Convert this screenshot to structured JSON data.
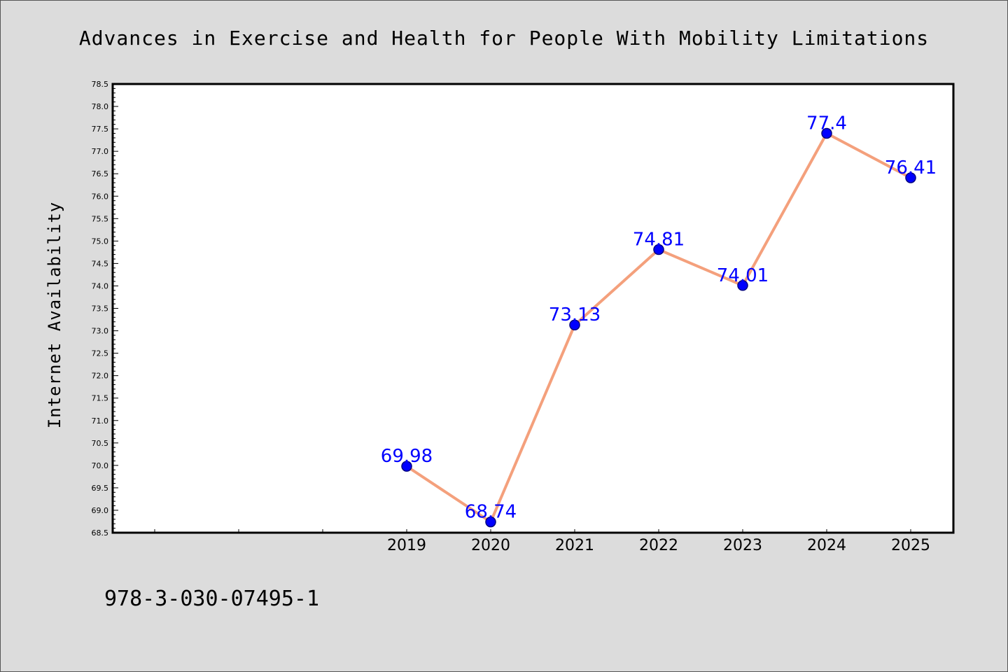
{
  "chart_data": {
    "type": "line",
    "title": "Advances in Exercise and Health for People With Mobility Limitations",
    "xlabel": "",
    "ylabel": "Internet Availability",
    "categories": [
      "2019",
      "2020",
      "2021",
      "2022",
      "2023",
      "2024",
      "2025"
    ],
    "series": [
      {
        "values": [
          69.98,
          68.74,
          73.13,
          74.81,
          74.01,
          77.4,
          76.41
        ]
      }
    ],
    "data_labels": [
      "69.98",
      "68.74",
      "73.13",
      "74.81",
      "74.01",
      "77.4",
      "76.41"
    ],
    "ylim": [
      68.5,
      78.5
    ],
    "y_ticks": [
      "68.5",
      "69.0",
      "69.5",
      "70.0",
      "70.5",
      "71.0",
      "71.5",
      "72.0",
      "72.5",
      "73.0",
      "73.5",
      "74.0",
      "74.5",
      "75.0",
      "75.5",
      "76.0",
      "76.5",
      "77.0",
      "77.5",
      "78.0",
      "78.5"
    ],
    "x_unlabeled_ticks_before": 3,
    "grid": false,
    "legend": "none",
    "colors": {
      "line": "#f4a07c",
      "marker_fill": "#0000ff",
      "marker_edge": "#000080",
      "data_label": "#0000ff",
      "plot_bg": "#ffffff",
      "figure_bg": "#dcdcdc"
    }
  },
  "footer": {
    "isbn": "978-3-030-07495-1"
  }
}
